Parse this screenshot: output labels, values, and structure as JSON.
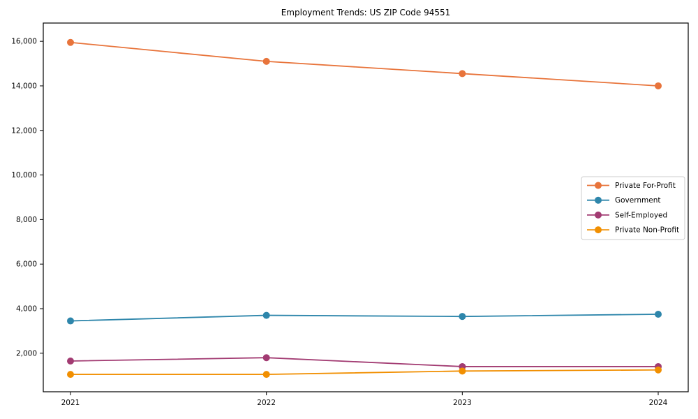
{
  "chart_data": {
    "type": "line",
    "title": "Employment Trends: US ZIP Code 94551",
    "xlabel": "",
    "ylabel": "",
    "x": [
      "2021",
      "2022",
      "2023",
      "2024"
    ],
    "series": [
      {
        "name": "Private For-Profit",
        "color": "#E8743B",
        "values": [
          15950,
          15100,
          14550,
          14000
        ]
      },
      {
        "name": "Government",
        "color": "#2E86AB",
        "values": [
          3450,
          3700,
          3650,
          3750
        ]
      },
      {
        "name": "Self-Employed",
        "color": "#A23B72",
        "values": [
          1650,
          1800,
          1400,
          1400
        ]
      },
      {
        "name": "Private Non-Profit",
        "color": "#F18F01",
        "values": [
          1050,
          1050,
          1200,
          1250
        ]
      }
    ],
    "ylim": [
      270,
      16820
    ],
    "yticks": [
      2000,
      4000,
      6000,
      8000,
      10000,
      12000,
      14000,
      16000
    ],
    "ytick_labels": [
      "2,000",
      "4,000",
      "6,000",
      "8,000",
      "10,000",
      "12,000",
      "14,000",
      "16,000"
    ],
    "grid": false,
    "legend_position": "center right",
    "marker": "circle",
    "axis_color": "#000000",
    "legend_border_color": "#cccccc",
    "legend_background": "#ffffff"
  }
}
